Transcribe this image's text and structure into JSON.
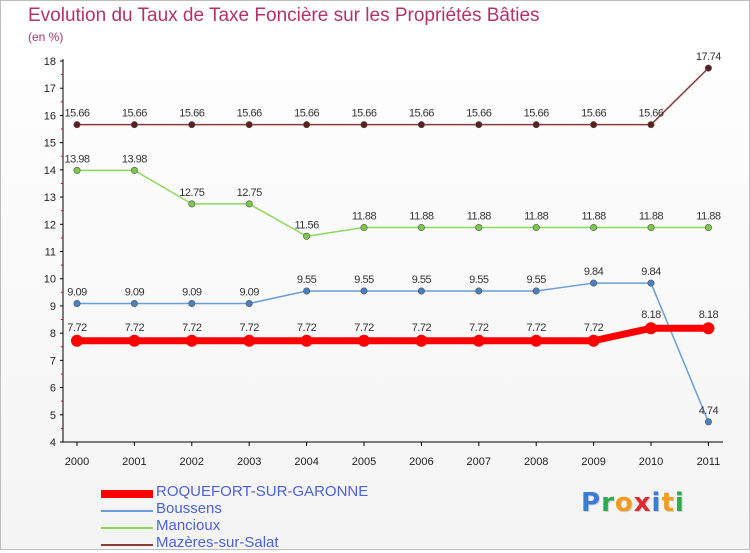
{
  "title": "Evolution du Taux de Taxe Foncière sur les Propriétés Bâties",
  "subtitle": "(en %)",
  "logo_text": "Proxiti",
  "chart_data": {
    "type": "line",
    "title": "Evolution du Taux de Taxe Foncière sur les Propriétés Bâties",
    "ylabel": "(en %)",
    "xlabel": "",
    "x": [
      "2000",
      "2001",
      "2002",
      "2003",
      "2004",
      "2005",
      "2006",
      "2007",
      "2008",
      "2009",
      "2010",
      "2011"
    ],
    "yticks": [
      "4",
      "5",
      "6",
      "7",
      "8",
      "9",
      "10",
      "11",
      "12",
      "13",
      "14",
      "15",
      "16",
      "17",
      "18"
    ],
    "ylim": [
      4,
      18
    ],
    "grid": false,
    "series": [
      {
        "name": "Mazères-sur-Salat",
        "color": "#8b3a3a",
        "marker": "#5a1f1f",
        "values": [
          15.66,
          15.66,
          15.66,
          15.66,
          15.66,
          15.66,
          15.66,
          15.66,
          15.66,
          15.66,
          15.66,
          17.74
        ],
        "labels": [
          "15.66",
          "15.66",
          "15.66",
          "15.66",
          "15.66",
          "15.66",
          "15.66",
          "15.66",
          "15.66",
          "15.66",
          "15.66",
          "17.74"
        ]
      },
      {
        "name": "Mancioux",
        "color": "#8ed85a",
        "marker": "#7cc94a",
        "values": [
          13.98,
          13.98,
          12.75,
          12.75,
          11.56,
          11.88,
          11.88,
          11.88,
          11.88,
          11.88,
          11.88,
          11.88
        ],
        "labels": [
          "13.98",
          "13.98",
          "12.75",
          "12.75",
          "11.56",
          "11.88",
          "11.88",
          "11.88",
          "11.88",
          "11.88",
          "11.88",
          "11.88"
        ]
      },
      {
        "name": "Boussens",
        "color": "#6a9ed8",
        "marker": "#4a7fc0",
        "values": [
          9.09,
          9.09,
          9.09,
          9.09,
          9.55,
          9.55,
          9.55,
          9.55,
          9.55,
          9.84,
          9.84,
          4.74
        ],
        "labels": [
          "9.09",
          "9.09",
          "9.09",
          "9.09",
          "9.55",
          "9.55",
          "9.55",
          "9.55",
          "9.55",
          "9.84",
          "9.84",
          "4.74"
        ]
      },
      {
        "name": "ROQUEFORT-SUR-GARONNE",
        "color": "#ff0000",
        "marker": "#ff0000",
        "values": [
          7.72,
          7.72,
          7.72,
          7.72,
          7.72,
          7.72,
          7.72,
          7.72,
          7.72,
          7.72,
          8.18,
          8.18
        ],
        "labels": [
          "7.72",
          "7.72",
          "7.72",
          "7.72",
          "7.72",
          "7.72",
          "7.72",
          "7.72",
          "7.72",
          "7.72",
          "8.18",
          "8.18"
        ]
      }
    ],
    "legend": [
      {
        "name": "ROQUEFORT-SUR-GARONNE",
        "color": "#ff0000",
        "thick": true
      },
      {
        "name": "Boussens",
        "color": "#6a9ed8",
        "thick": false
      },
      {
        "name": "Mancioux",
        "color": "#8ed85a",
        "thick": false
      },
      {
        "name": "Mazères-sur-Salat",
        "color": "#8b3a3a",
        "thick": false
      }
    ]
  }
}
